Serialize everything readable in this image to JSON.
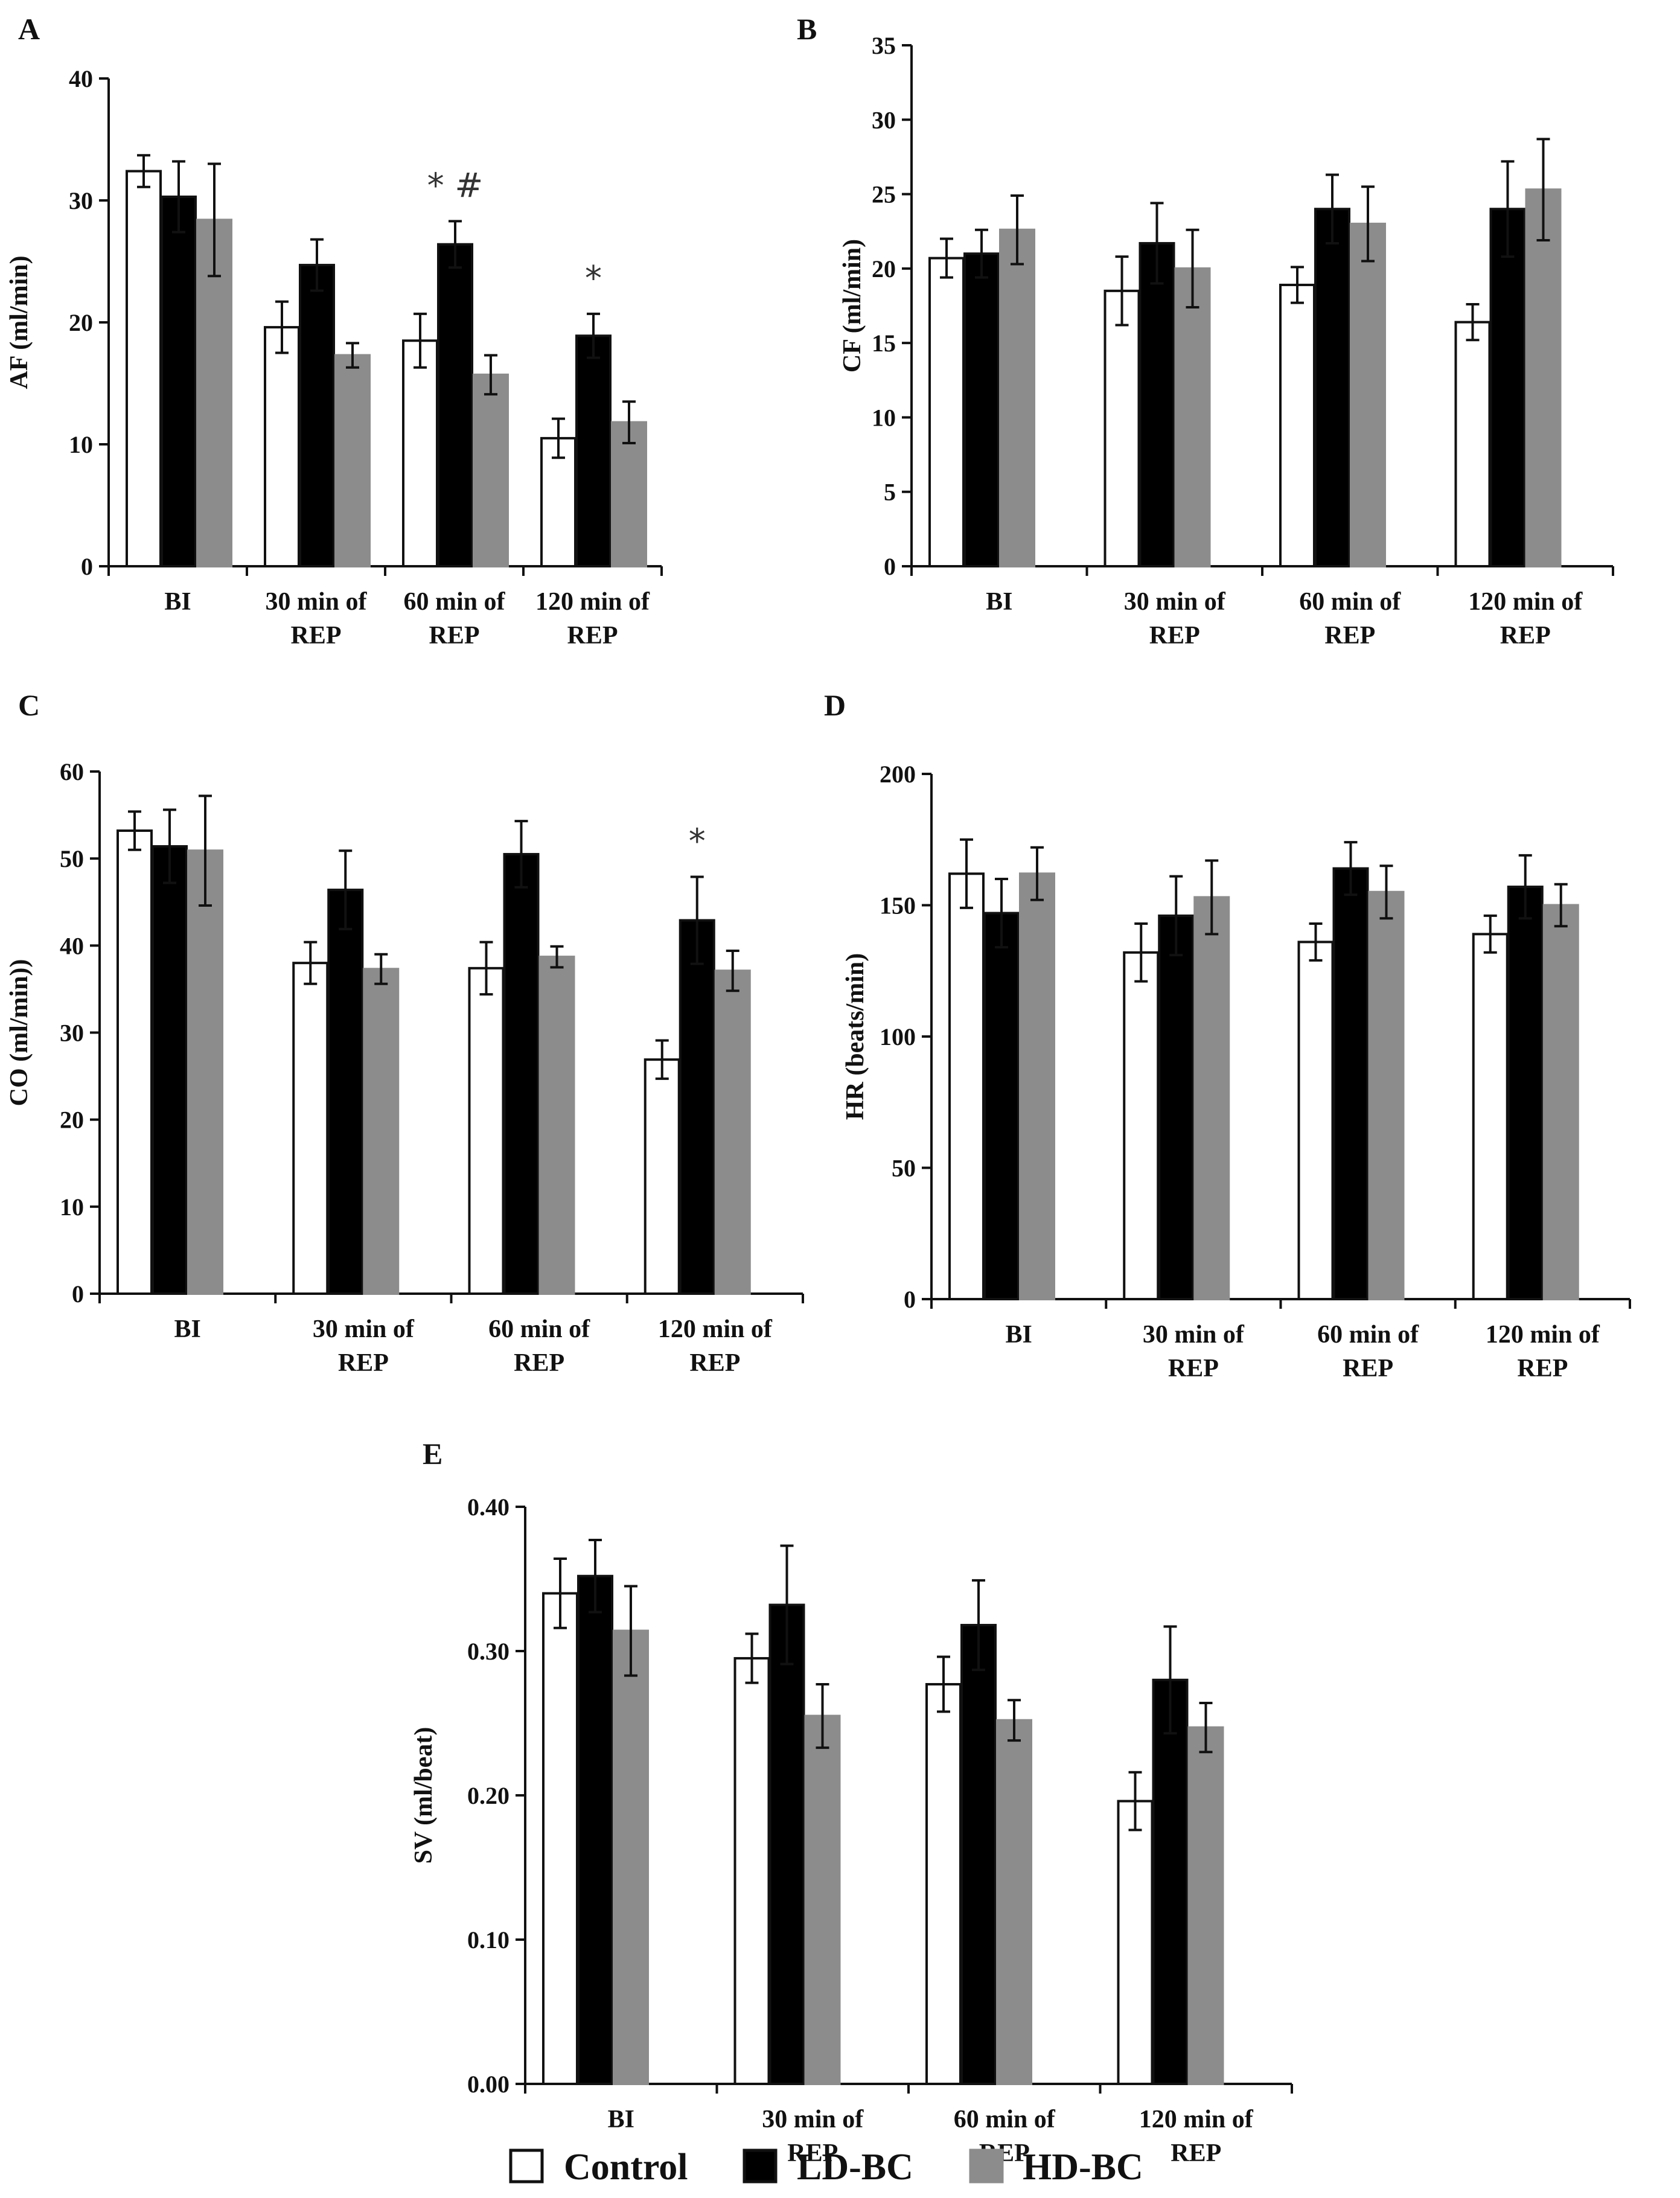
{
  "legend": [
    "Control",
    "LD-BC",
    "HD-BC"
  ],
  "colors": {
    "Control": "#ffffff",
    "LD-BC": "#000000",
    "HD-BC": "#8c8c8c",
    "axis": "#111111"
  },
  "chart_data": [
    {
      "type": "bar",
      "panel": "A",
      "ylabel": "AF (ml/min)",
      "categories": [
        [
          "BI"
        ],
        [
          "30 min of",
          "REP"
        ],
        [
          "60 min of",
          "REP"
        ],
        [
          "120 min of",
          "REP"
        ]
      ],
      "ylim": [
        0,
        40
      ],
      "yticks": [
        "0",
        "10",
        "20",
        "30",
        "40"
      ],
      "series": [
        {
          "name": "Control",
          "values": [
            32.4,
            19.6,
            18.5,
            10.5
          ],
          "errors": [
            1.3,
            2.1,
            2.2,
            1.6
          ]
        },
        {
          "name": "LD-BC",
          "values": [
            30.3,
            24.7,
            26.4,
            18.9
          ],
          "errors": [
            2.9,
            2.1,
            1.9,
            1.8
          ]
        },
        {
          "name": "HD-BC",
          "values": [
            28.4,
            17.3,
            15.7,
            11.8
          ],
          "errors": [
            4.6,
            1.0,
            1.6,
            1.7
          ]
        }
      ],
      "annotations": [
        {
          "category": 2,
          "text": "* #"
        },
        {
          "category": 3,
          "text": "*"
        }
      ]
    },
    {
      "type": "bar",
      "panel": "B",
      "ylabel": "CF (ml/min)",
      "categories": [
        [
          "BI"
        ],
        [
          "30 min of",
          "REP"
        ],
        [
          "60 min of",
          "REP"
        ],
        [
          "120 min of",
          "REP"
        ]
      ],
      "ylim": [
        0,
        35
      ],
      "yticks": [
        "0",
        "5",
        "10",
        "15",
        "20",
        "25",
        "30",
        "35"
      ],
      "series": [
        {
          "name": "Control",
          "values": [
            20.7,
            18.5,
            18.9,
            16.4
          ],
          "errors": [
            1.3,
            2.3,
            1.2,
            1.2
          ]
        },
        {
          "name": "LD-BC",
          "values": [
            21.0,
            21.7,
            24.0,
            24.0
          ],
          "errors": [
            1.6,
            2.7,
            2.3,
            3.2
          ]
        },
        {
          "name": "HD-BC",
          "values": [
            22.6,
            20.0,
            23.0,
            25.3
          ],
          "errors": [
            2.3,
            2.6,
            2.5,
            3.4
          ]
        }
      ],
      "annotations": []
    },
    {
      "type": "bar",
      "panel": "C",
      "ylabel": "CO (ml/min))",
      "categories": [
        [
          "BI"
        ],
        [
          "30 min of",
          "REP"
        ],
        [
          "60 min of",
          "REP"
        ],
        [
          "120 min of",
          "REP"
        ]
      ],
      "ylim": [
        0,
        60
      ],
      "yticks": [
        "0",
        "10",
        "20",
        "30",
        "40",
        "50",
        "60"
      ],
      "series": [
        {
          "name": "Control",
          "values": [
            53.2,
            38.0,
            37.4,
            26.9
          ],
          "errors": [
            2.2,
            2.4,
            3.0,
            2.2
          ]
        },
        {
          "name": "LD-BC",
          "values": [
            51.4,
            46.4,
            50.5,
            42.9
          ],
          "errors": [
            4.2,
            4.5,
            3.8,
            5.0
          ]
        },
        {
          "name": "HD-BC",
          "values": [
            50.9,
            37.3,
            38.7,
            37.1
          ],
          "errors": [
            6.3,
            1.7,
            1.2,
            2.3
          ]
        }
      ],
      "annotations": [
        {
          "category": 3,
          "text": "*"
        }
      ]
    },
    {
      "type": "bar",
      "panel": "D",
      "ylabel": "HR (beats/min)",
      "categories": [
        [
          "BI"
        ],
        [
          "30 min of",
          "REP"
        ],
        [
          "60 min of",
          "REP"
        ],
        [
          "120 min of",
          "REP"
        ]
      ],
      "ylim": [
        0,
        200
      ],
      "yticks": [
        "0",
        "50",
        "100",
        "150",
        "200"
      ],
      "series": [
        {
          "name": "Control",
          "values": [
            162,
            132,
            136,
            139
          ],
          "errors": [
            13,
            11,
            7,
            7
          ]
        },
        {
          "name": "LD-BC",
          "values": [
            147,
            146,
            164,
            157
          ],
          "errors": [
            13,
            15,
            10,
            12
          ]
        },
        {
          "name": "HD-BC",
          "values": [
            162,
            153,
            155,
            150
          ],
          "errors": [
            10,
            14,
            10,
            8
          ]
        }
      ],
      "annotations": []
    },
    {
      "type": "bar",
      "panel": "E",
      "ylabel": "SV (ml/beat)",
      "categories": [
        [
          "BI"
        ],
        [
          "30 min of",
          "REP"
        ],
        [
          "60 min of",
          "REP"
        ],
        [
          "120 min of",
          "REP"
        ]
      ],
      "ylim": [
        0,
        0.4
      ],
      "yticks": [
        "0.00",
        "0.10",
        "0.20",
        "0.30",
        "0.40"
      ],
      "series": [
        {
          "name": "Control",
          "values": [
            0.34,
            0.295,
            0.277,
            0.196
          ],
          "errors": [
            0.024,
            0.017,
            0.019,
            0.02
          ]
        },
        {
          "name": "LD-BC",
          "values": [
            0.352,
            0.332,
            0.318,
            0.28
          ],
          "errors": [
            0.025,
            0.041,
            0.031,
            0.037
          ]
        },
        {
          "name": "HD-BC",
          "values": [
            0.314,
            0.255,
            0.252,
            0.247
          ],
          "errors": [
            0.031,
            0.022,
            0.014,
            0.017
          ]
        }
      ],
      "annotations": []
    }
  ]
}
